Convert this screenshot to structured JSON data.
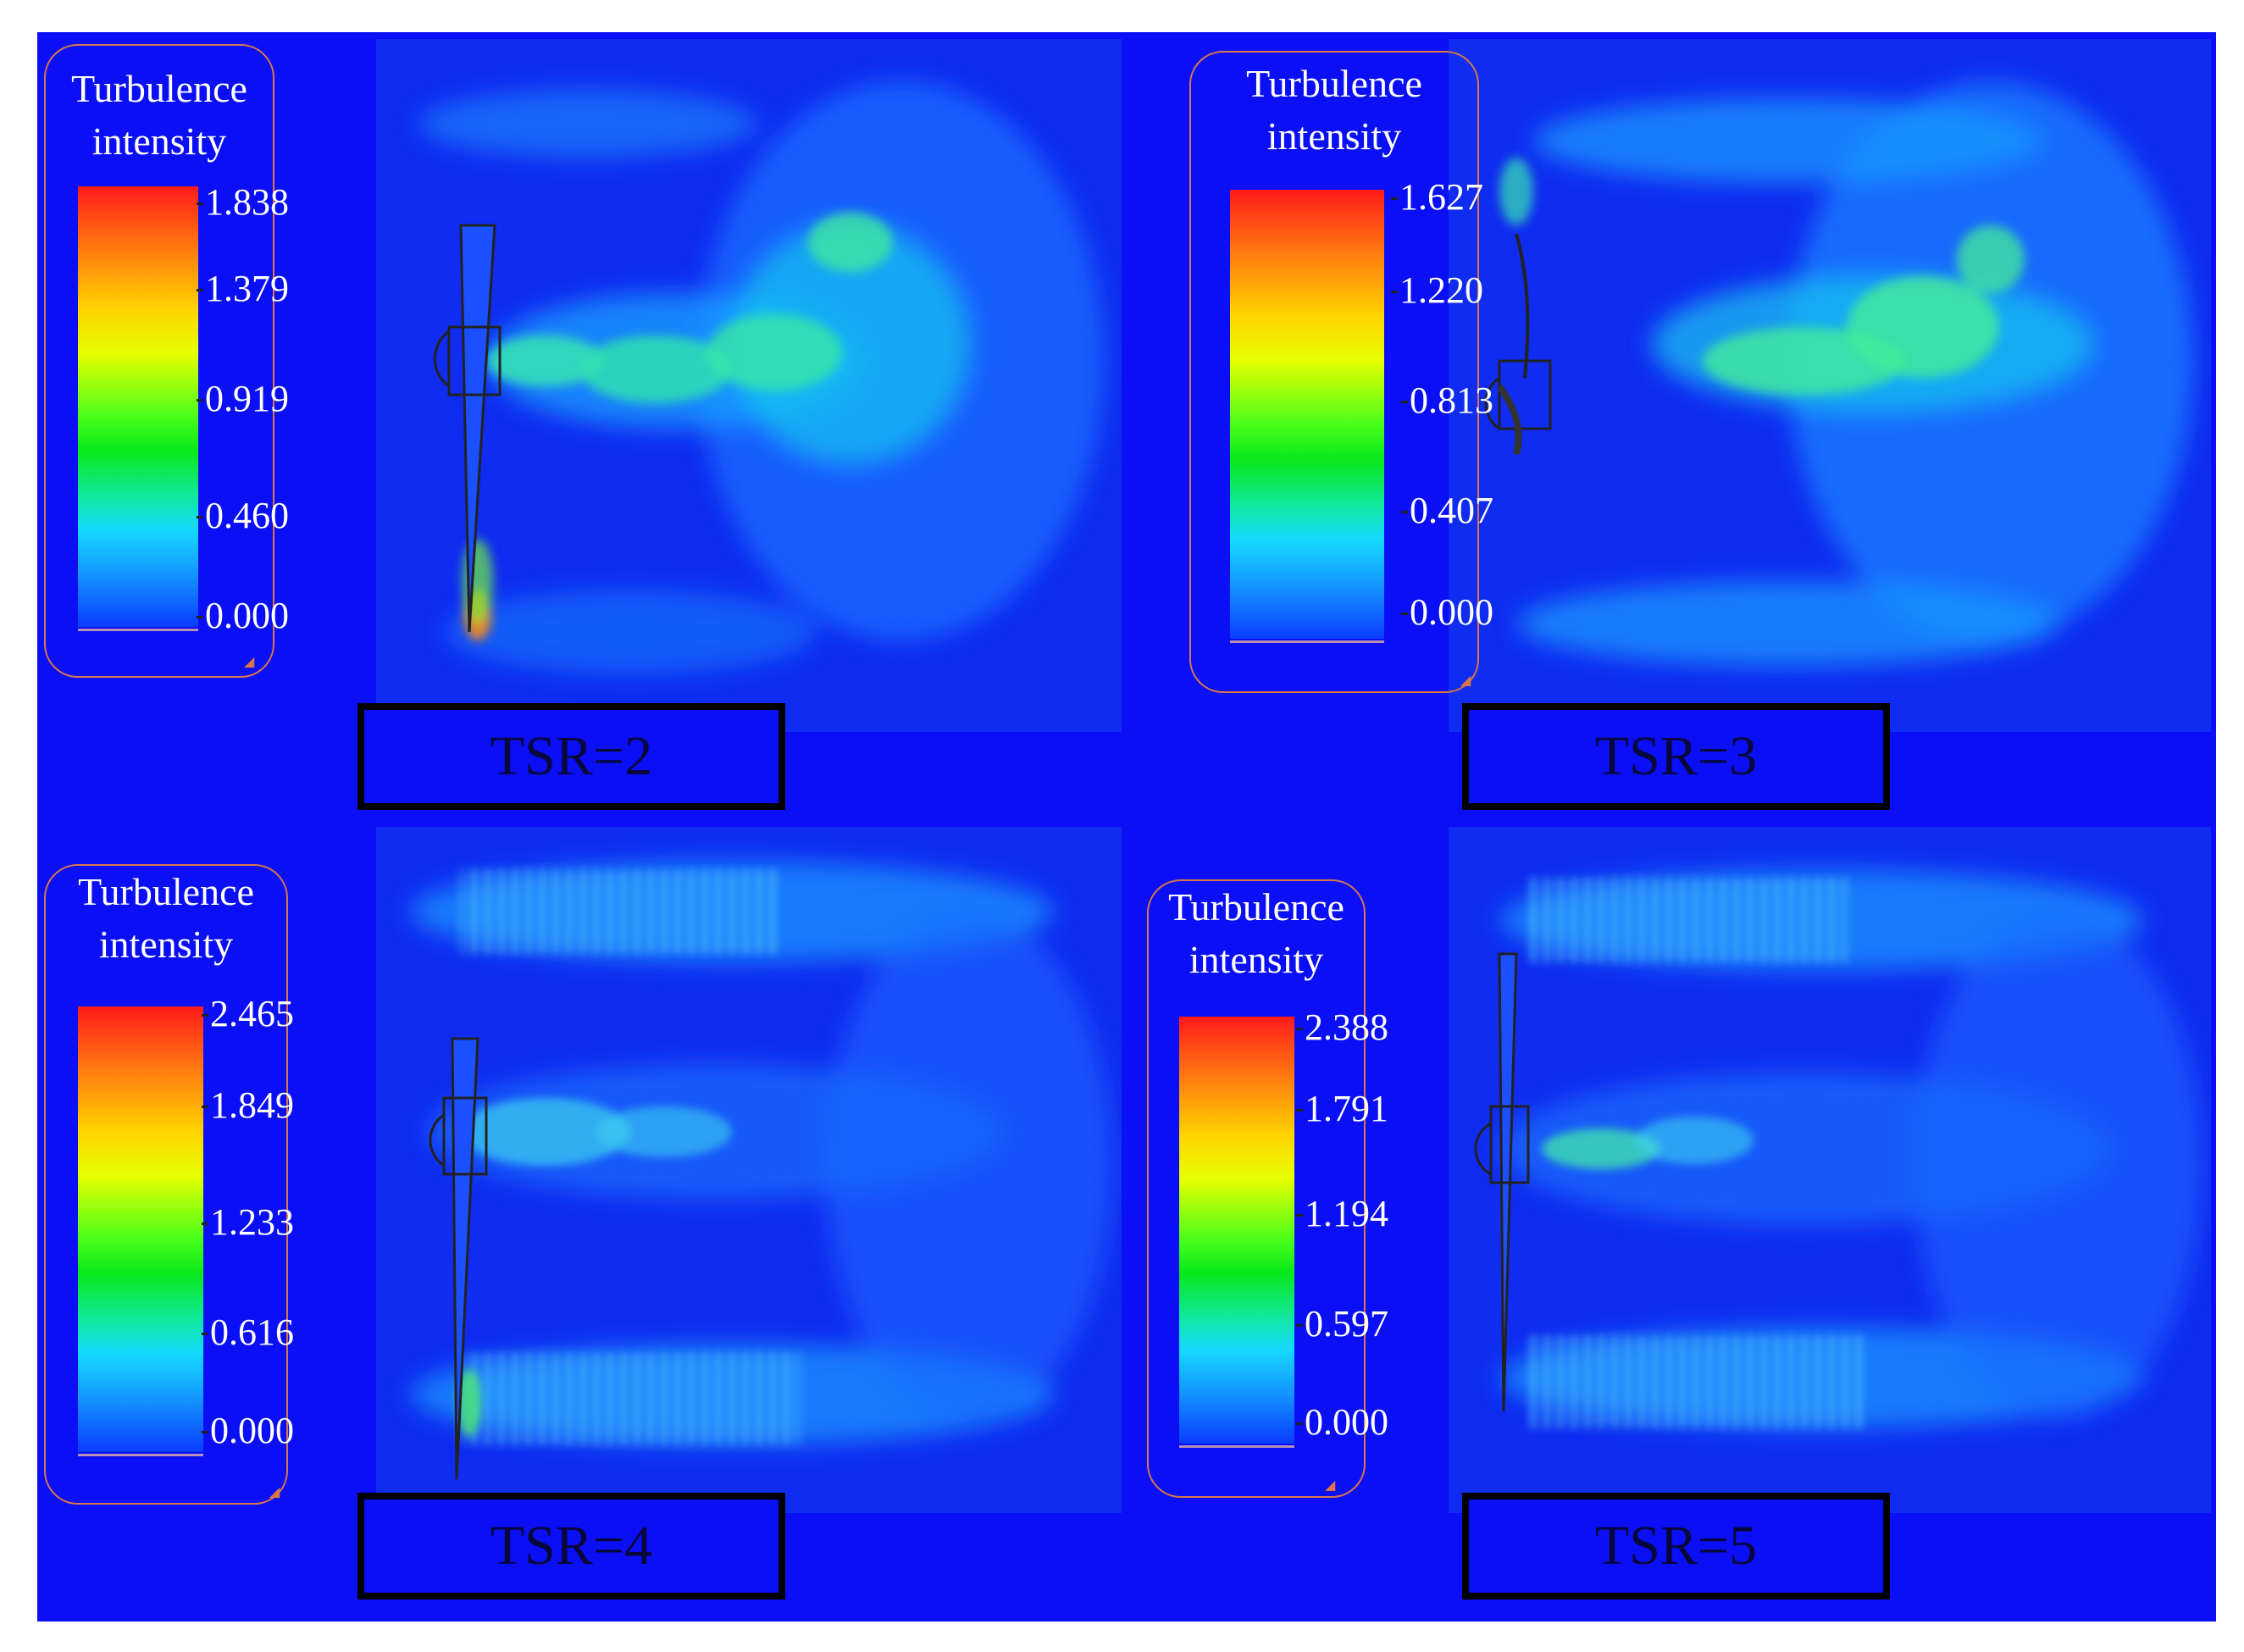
{
  "figure": {
    "panels": [
      {
        "id": "tsr2",
        "label": "TSR=2",
        "legend_title_line1": "Turbulence",
        "legend_title_line2": "intensity",
        "ticks": [
          "1.838",
          "1.379",
          "0.919",
          "0.460",
          "0.000"
        ]
      },
      {
        "id": "tsr3",
        "label": "TSR=3",
        "legend_title_line1": "Turbulence",
        "legend_title_line2": "intensity",
        "ticks": [
          "1.627",
          "1.220",
          "0.813",
          "0.407",
          "0.000"
        ]
      },
      {
        "id": "tsr4",
        "label": "TSR=4",
        "legend_title_line1": "Turbulence",
        "legend_title_line2": "intensity",
        "ticks": [
          "2.465",
          "1.849",
          "1.233",
          "0.616",
          "0.000"
        ]
      },
      {
        "id": "tsr5",
        "label": "TSR=5",
        "legend_title_line1": "Turbulence",
        "legend_title_line2": "intensity",
        "ticks": [
          "2.388",
          "1.791",
          "1.194",
          "0.597",
          "0.000"
        ]
      }
    ]
  },
  "colors": {
    "background": "#0a0ff5",
    "legend_border": "#d9774a",
    "label_box_border": "#000000",
    "label_text": "#08083a"
  }
}
